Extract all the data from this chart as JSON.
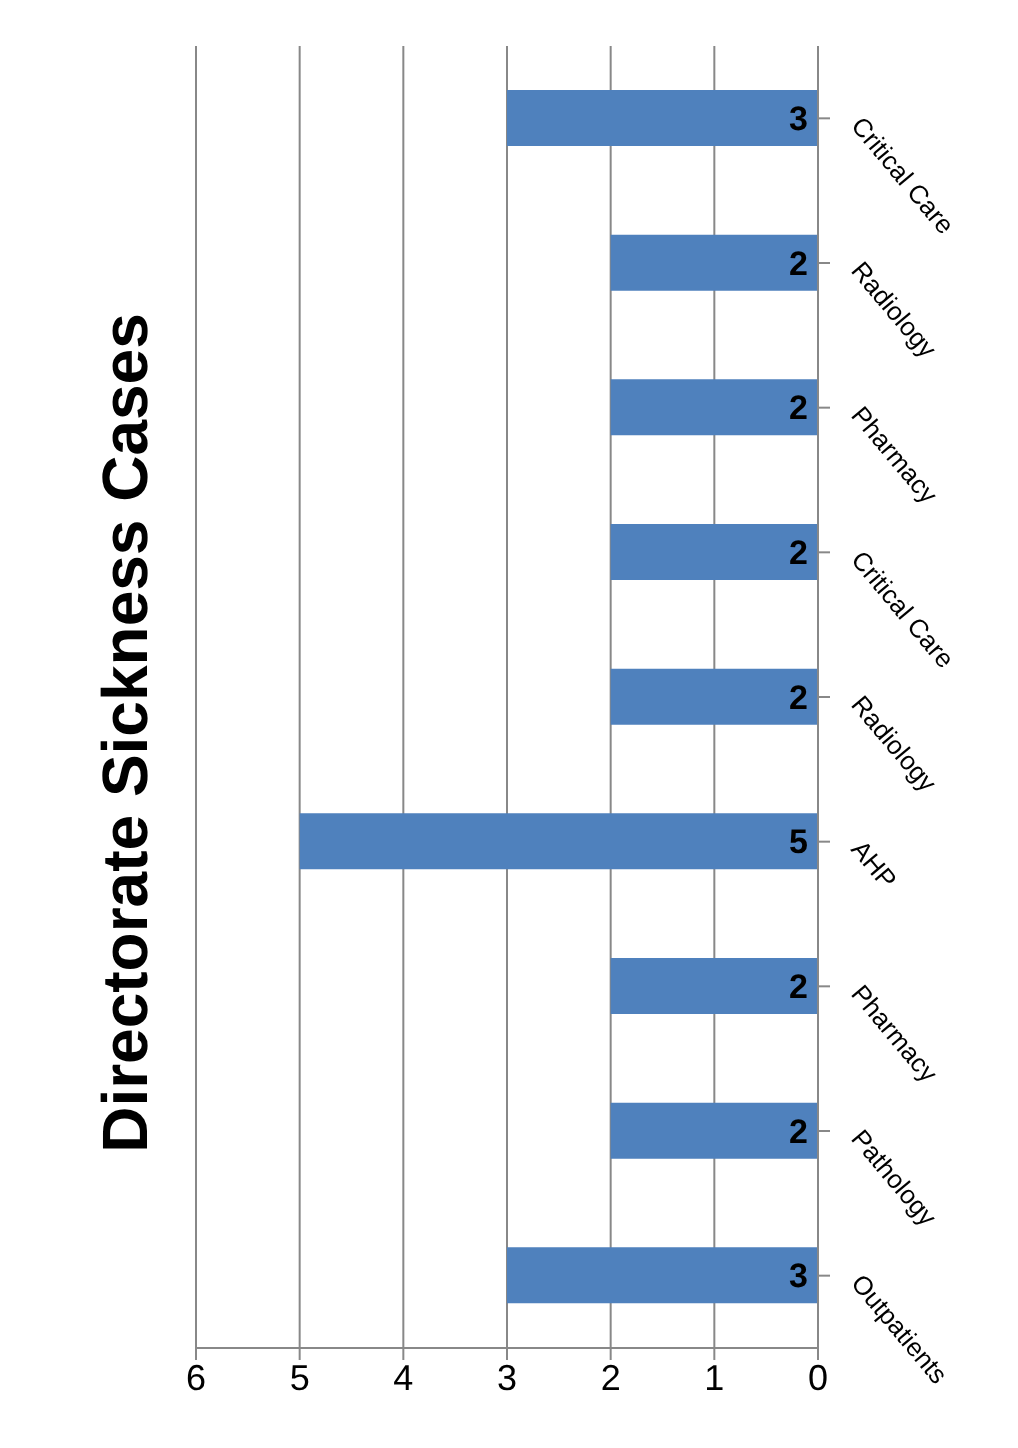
{
  "chart_data": {
    "type": "bar",
    "orientation": "horizontal",
    "title": "Directorate Sickness Cases",
    "categories": [
      "Critical Care",
      "Radiology",
      "Pharmacy",
      "Critical Care",
      "Radiology",
      "AHP",
      "Pharmacy",
      "Pathology",
      "Outpatients"
    ],
    "values": [
      3,
      2,
      2,
      2,
      2,
      5,
      2,
      2,
      3
    ],
    "color": "#4f81bd",
    "xlim": [
      6,
      0
    ],
    "xticks": [
      6,
      5,
      4,
      3,
      2,
      1,
      0
    ],
    "grid": "x",
    "data_labels": true
  }
}
